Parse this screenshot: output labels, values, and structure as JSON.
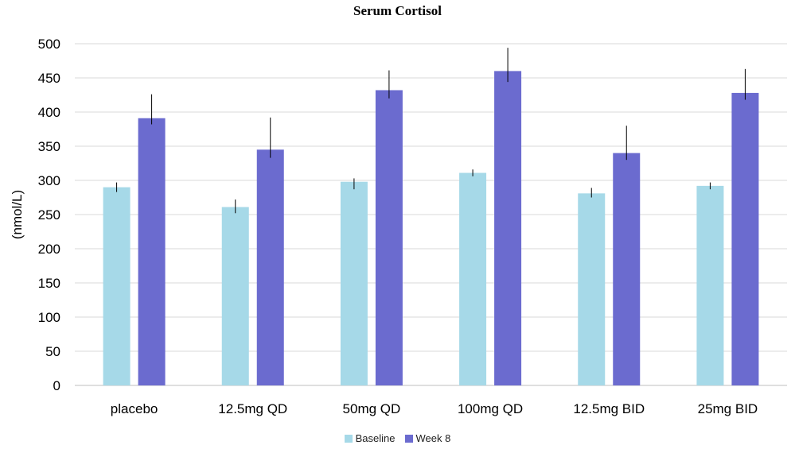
{
  "chart_data": {
    "type": "bar",
    "title": "Serum Cortisol",
    "xlabel": "",
    "ylabel": "(nmol/L)",
    "ylim": [
      0,
      500
    ],
    "yticks": [
      0,
      50,
      100,
      150,
      200,
      250,
      300,
      350,
      400,
      450,
      500
    ],
    "grid": true,
    "legend_position": "bottom",
    "categories": [
      "placebo",
      "12.5mg QD",
      "50mg QD",
      "100mg QD",
      "12.5mg BID",
      "25mg BID"
    ],
    "series": [
      {
        "name": "Baseline",
        "color": "#a6d9e8",
        "values": [
          290,
          261,
          298,
          311,
          281,
          292
        ],
        "error_low": [
          283,
          252,
          287,
          306,
          275,
          287
        ],
        "error_high": [
          297,
          272,
          303,
          316,
          289,
          297
        ]
      },
      {
        "name": "Week 8",
        "color": "#6b6bcf",
        "values": [
          391,
          345,
          432,
          460,
          340,
          428
        ],
        "error_low": [
          382,
          333,
          420,
          444,
          330,
          418
        ],
        "error_high": [
          426,
          392,
          461,
          494,
          380,
          463
        ]
      }
    ]
  }
}
